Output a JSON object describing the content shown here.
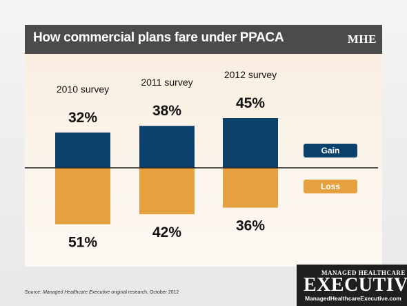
{
  "header": {
    "title": "How commercial plans fare under PPACA",
    "logo": "MHE"
  },
  "colors": {
    "gain": "#0c416b",
    "loss": "#e5a03f",
    "header_bg": "#4b4b4b"
  },
  "chart_data": {
    "type": "bar",
    "title": "How commercial plans fare under PPACA",
    "categories": [
      "2010 survey",
      "2011 survey",
      "2012 survey"
    ],
    "series": [
      {
        "name": "Gain",
        "values": [
          32,
          38,
          45
        ]
      },
      {
        "name": "Loss",
        "values": [
          51,
          42,
          36
        ]
      }
    ],
    "value_labels": {
      "gain": [
        "32%",
        "38%",
        "45%"
      ],
      "loss": [
        "51%",
        "42%",
        "36%"
      ]
    },
    "legend": {
      "placement": "right",
      "items": [
        "Gain",
        "Loss"
      ]
    },
    "grid": false
  },
  "footer": {
    "source_prefix": "Source: ",
    "source_publication": "Managed Healthcare Executive",
    "source_suffix": " original research, October 2012"
  },
  "brand": {
    "line1": "MANAGED HEALTHCARE",
    "line2": "EXECUTIVE",
    "line3": "ManagedHealthcareExecutive.com"
  }
}
